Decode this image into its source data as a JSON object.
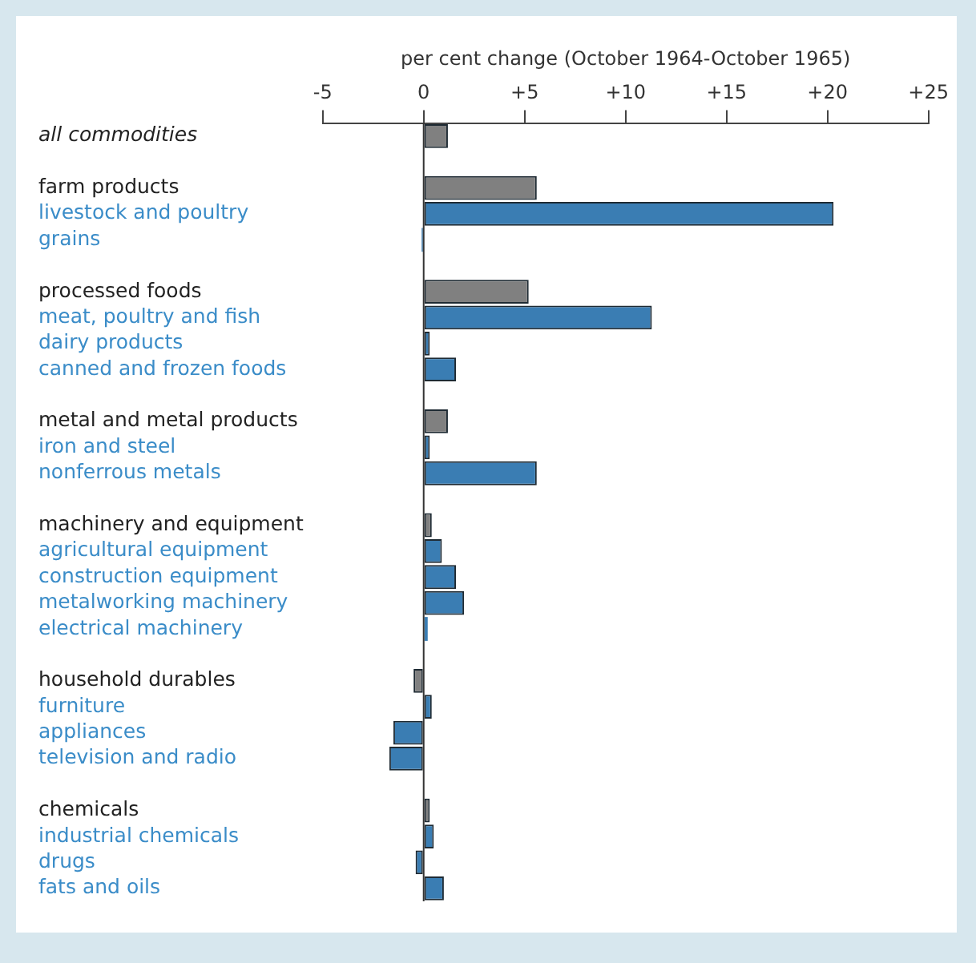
{
  "chart_data": {
    "type": "bar",
    "orientation": "horizontal",
    "xlabel": "per cent change (October 1964-October 1965)",
    "categories": [
      "all commodities",
      null,
      "farm products",
      "livestock and poultry",
      "grains",
      null,
      "processed foods",
      "meat, poultry and fish",
      "dairy products",
      "canned and frozen foods",
      null,
      "metal and metal products",
      "iron and steel",
      "nonferrous metals",
      null,
      "machinery and equipment",
      "agricultural equipment",
      "construction equipment",
      "metalworking machinery",
      "electrical machinery",
      null,
      "household durables",
      "furniture",
      "appliances",
      "television and radio",
      null,
      "chemicals",
      "industrial chemicals",
      "drugs",
      "fats and oils"
    ],
    "values": [
      1.2,
      null,
      5.6,
      20.3,
      -0.1,
      null,
      5.2,
      11.3,
      0.3,
      1.6,
      null,
      1.2,
      0.3,
      5.6,
      null,
      0.4,
      0.9,
      1.6,
      2.0,
      0.2,
      null,
      -0.5,
      0.4,
      -1.5,
      -1.7,
      null,
      0.3,
      0.5,
      -0.4,
      1.0
    ],
    "colors": [
      "#808080",
      null,
      "#808080",
      "#3a7db3",
      "#3a7db3",
      null,
      "#808080",
      "#3a7db3",
      "#3a7db3",
      "#3a7db3",
      null,
      "#808080",
      "#3a7db3",
      "#3a7db3",
      null,
      "#808080",
      "#3a7db3",
      "#3a7db3",
      "#3a7db3",
      "#3a7db3",
      null,
      "#808080",
      "#3a7db3",
      "#3a7db3",
      "#3a7db3",
      null,
      "#808080",
      "#3a7db3",
      "#3a7db3",
      "#3a7db3"
    ],
    "xlim": [
      -5,
      25
    ],
    "xticks": [
      -5,
      0,
      {
        "value": 5,
        "label": "+5"
      },
      {
        "value": 10,
        "label": "+10"
      },
      {
        "value": 15,
        "label": "+15"
      },
      {
        "value": 20,
        "label": "+20"
      },
      {
        "value": 25,
        "label": "+25"
      }
    ],
    "ref_lines": [
      {
        "axis": "x",
        "value": 0,
        "color": "#333333"
      }
    ],
    "grid": false,
    "legend": false
  }
}
